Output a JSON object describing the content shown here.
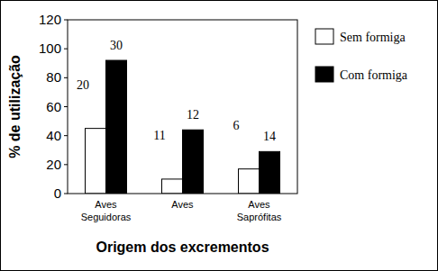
{
  "chart_data": {
    "type": "bar",
    "x_label": "Origem dos excrementos",
    "y_label": "% de utilização",
    "categories": [
      "Aves Seguidoras",
      "Aves",
      "Aves Saprófitas"
    ],
    "series": [
      {
        "name": "Sem formiga",
        "color": "#ffffff",
        "values": [
          45,
          10,
          17
        ],
        "n": [
          20,
          11,
          6
        ]
      },
      {
        "name": "Com formiga",
        "color": "#000000",
        "values": [
          92,
          44,
          29
        ],
        "n": [
          30,
          12,
          14
        ]
      }
    ],
    "ylim": [
      0,
      120
    ],
    "yticks": [
      0,
      20,
      40,
      60,
      80,
      100,
      120
    ],
    "grid": false,
    "legend": "right"
  }
}
